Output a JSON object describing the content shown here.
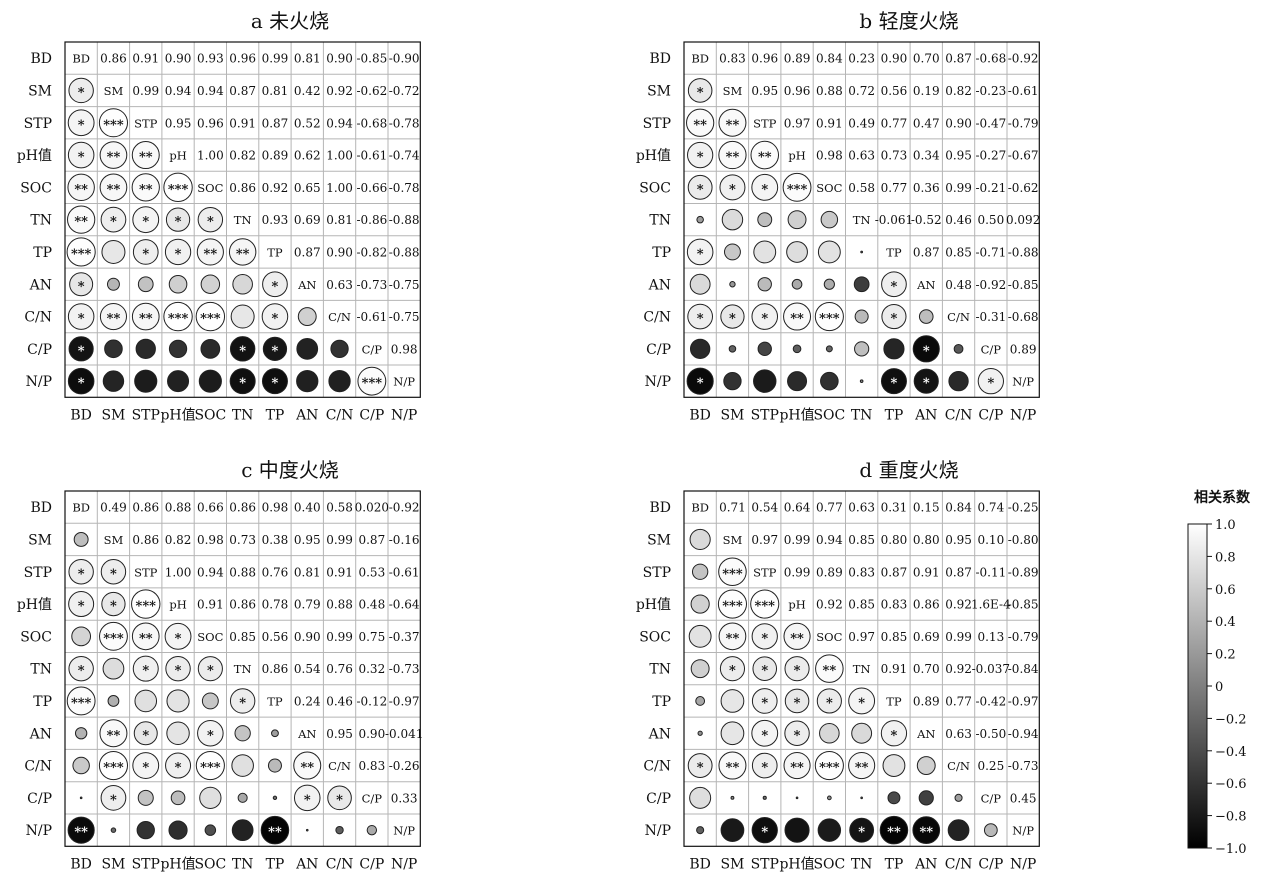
{
  "chart_data": [
    {
      "type": "heatmap",
      "subtype": "correlation-matrix",
      "title": "a 未火烧",
      "variables": [
        "BD",
        "SM",
        "STP",
        "pH值",
        "SOC",
        "TN",
        "TP",
        "AN",
        "C/N",
        "C/P",
        "N/P"
      ],
      "diagonal_labels": [
        "BD",
        "SM",
        "STP",
        "pH",
        "SOC",
        "TN",
        "TP",
        "AN",
        "C/N",
        "C/P",
        "N/P"
      ],
      "upper_display": [
        [
          null,
          "0.86",
          "0.91",
          "0.90",
          "0.93",
          "0.96",
          "0.99",
          "0.81",
          "0.90",
          "-0.85",
          "-0.90"
        ],
        [
          null,
          null,
          "0.99",
          "0.94",
          "0.94",
          "0.87",
          "0.81",
          "0.42",
          "0.92",
          "-0.62",
          "-0.72"
        ],
        [
          null,
          null,
          null,
          "0.95",
          "0.96",
          "0.91",
          "0.87",
          "0.52",
          "0.94",
          "-0.68",
          "-0.78"
        ],
        [
          null,
          null,
          null,
          null,
          "1.00",
          "0.82",
          "0.89",
          "0.62",
          "1.00",
          "-0.61",
          "-0.74"
        ],
        [
          null,
          null,
          null,
          null,
          null,
          "0.86",
          "0.92",
          "0.65",
          "1.00",
          "-0.66",
          "-0.78"
        ],
        [
          null,
          null,
          null,
          null,
          null,
          null,
          "0.93",
          "0.69",
          "0.81",
          "-0.86",
          "-0.88"
        ],
        [
          null,
          null,
          null,
          null,
          null,
          null,
          null,
          "0.87",
          "0.90",
          "-0.82",
          "-0.88"
        ],
        [
          null,
          null,
          null,
          null,
          null,
          null,
          null,
          null,
          "0.63",
          "-0.73",
          "-0.75"
        ],
        [
          null,
          null,
          null,
          null,
          null,
          null,
          null,
          null,
          null,
          "-0.61",
          "-0.75"
        ],
        [
          null,
          null,
          null,
          null,
          null,
          null,
          null,
          null,
          null,
          null,
          "0.98"
        ],
        [
          null,
          null,
          null,
          null,
          null,
          null,
          null,
          null,
          null,
          null,
          null
        ]
      ],
      "lower_stars": [
        [],
        [
          "*"
        ],
        [
          "*",
          "***"
        ],
        [
          "*",
          "**",
          "**"
        ],
        [
          "**",
          "**",
          "**",
          "***"
        ],
        [
          "**",
          "*",
          "*",
          "*",
          "*"
        ],
        [
          "***",
          "",
          "*",
          "*",
          "**",
          "**"
        ],
        [
          "*",
          "",
          "",
          "",
          "",
          "",
          "*"
        ],
        [
          "*",
          "**",
          "**",
          "***",
          "***",
          "",
          "*",
          ""
        ],
        [
          "*",
          "",
          "",
          "",
          "",
          "*",
          "*",
          "",
          ""
        ],
        [
          "*",
          "",
          "",
          "",
          "",
          "*",
          "*",
          "",
          "",
          "***"
        ]
      ]
    },
    {
      "type": "heatmap",
      "subtype": "correlation-matrix",
      "title": "b 轻度火烧",
      "variables": [
        "BD",
        "SM",
        "STP",
        "pH值",
        "SOC",
        "TN",
        "TP",
        "AN",
        "C/N",
        "C/P",
        "N/P"
      ],
      "diagonal_labels": [
        "BD",
        "SM",
        "STP",
        "pH",
        "SOC",
        "TN",
        "TP",
        "AN",
        "C/N",
        "C/P",
        "N/P"
      ],
      "upper_display": [
        [
          null,
          "0.83",
          "0.96",
          "0.89",
          "0.84",
          "0.23",
          "0.90",
          "0.70",
          "0.87",
          "-0.68",
          "-0.92"
        ],
        [
          null,
          null,
          "0.95",
          "0.96",
          "0.88",
          "0.72",
          "0.56",
          "0.19",
          "0.82",
          "-0.23",
          "-0.61"
        ],
        [
          null,
          null,
          null,
          "0.97",
          "0.91",
          "0.49",
          "0.77",
          "0.47",
          "0.90",
          "-0.47",
          "-0.79"
        ],
        [
          null,
          null,
          null,
          null,
          "0.98",
          "0.63",
          "0.73",
          "0.34",
          "0.95",
          "-0.27",
          "-0.67"
        ],
        [
          null,
          null,
          null,
          null,
          null,
          "0.58",
          "0.77",
          "0.36",
          "0.99",
          "-0.21",
          "-0.62"
        ],
        [
          null,
          null,
          null,
          null,
          null,
          null,
          "-0.061",
          "-0.52",
          "0.46",
          "0.50",
          "0.092"
        ],
        [
          null,
          null,
          null,
          null,
          null,
          null,
          null,
          "0.87",
          "0.85",
          "-0.71",
          "-0.88"
        ],
        [
          null,
          null,
          null,
          null,
          null,
          null,
          null,
          null,
          "0.48",
          "-0.92",
          "-0.85"
        ],
        [
          null,
          null,
          null,
          null,
          null,
          null,
          null,
          null,
          null,
          "-0.31",
          "-0.68"
        ],
        [
          null,
          null,
          null,
          null,
          null,
          null,
          null,
          null,
          null,
          null,
          "0.89"
        ],
        [
          null,
          null,
          null,
          null,
          null,
          null,
          null,
          null,
          null,
          null,
          null
        ]
      ],
      "lower_stars": [
        [],
        [
          "*"
        ],
        [
          "**",
          "**"
        ],
        [
          "*",
          "**",
          "**"
        ],
        [
          "*",
          "*",
          "*",
          "***"
        ],
        [
          "",
          "",
          "",
          "",
          ""
        ],
        [
          "*",
          "",
          "",
          "",
          "",
          ""
        ],
        [
          "",
          "",
          "",
          "",
          "",
          "",
          "*"
        ],
        [
          "*",
          "*",
          "*",
          "**",
          "***",
          "",
          "*",
          ""
        ],
        [
          "",
          "",
          "",
          "",
          "",
          "",
          "",
          "*",
          ""
        ],
        [
          "*",
          "",
          "",
          "",
          "",
          "",
          "*",
          "*",
          "",
          "*"
        ]
      ]
    },
    {
      "type": "heatmap",
      "subtype": "correlation-matrix",
      "title": "c 中度火烧",
      "variables": [
        "BD",
        "SM",
        "STP",
        "pH值",
        "SOC",
        "TN",
        "TP",
        "AN",
        "C/N",
        "C/P",
        "N/P"
      ],
      "diagonal_labels": [
        "BD",
        "SM",
        "STP",
        "pH",
        "SOC",
        "TN",
        "TP",
        "AN",
        "C/N",
        "C/P",
        "N/P"
      ],
      "upper_display": [
        [
          null,
          "0.49",
          "0.86",
          "0.88",
          "0.66",
          "0.86",
          "0.98",
          "0.40",
          "0.58",
          "0.020",
          "-0.92"
        ],
        [
          null,
          null,
          "0.86",
          "0.82",
          "0.98",
          "0.73",
          "0.38",
          "0.95",
          "0.99",
          "0.87",
          "-0.16"
        ],
        [
          null,
          null,
          null,
          "1.00",
          "0.94",
          "0.88",
          "0.76",
          "0.81",
          "0.91",
          "0.53",
          "-0.61"
        ],
        [
          null,
          null,
          null,
          null,
          "0.91",
          "0.86",
          "0.78",
          "0.79",
          "0.88",
          "0.48",
          "-0.64"
        ],
        [
          null,
          null,
          null,
          null,
          null,
          "0.85",
          "0.56",
          "0.90",
          "0.99",
          "0.75",
          "-0.37"
        ],
        [
          null,
          null,
          null,
          null,
          null,
          null,
          "0.86",
          "0.54",
          "0.76",
          "0.32",
          "-0.73"
        ],
        [
          null,
          null,
          null,
          null,
          null,
          null,
          null,
          "0.24",
          "0.46",
          "-0.12",
          "-0.97"
        ],
        [
          null,
          null,
          null,
          null,
          null,
          null,
          null,
          null,
          "0.95",
          "0.90",
          "-0.041"
        ],
        [
          null,
          null,
          null,
          null,
          null,
          null,
          null,
          null,
          null,
          "0.83",
          "-0.26"
        ],
        [
          null,
          null,
          null,
          null,
          null,
          null,
          null,
          null,
          null,
          null,
          "0.33"
        ],
        [
          null,
          null,
          null,
          null,
          null,
          null,
          null,
          null,
          null,
          null,
          null
        ]
      ],
      "lower_stars": [
        [],
        [
          ""
        ],
        [
          "*",
          "*"
        ],
        [
          "*",
          "*",
          "***"
        ],
        [
          "",
          "***",
          "**",
          "*"
        ],
        [
          "*",
          "",
          "*",
          "*",
          "*"
        ],
        [
          "***",
          "",
          "",
          "",
          "",
          "*"
        ],
        [
          "",
          "**",
          "*",
          "",
          "*",
          "",
          ""
        ],
        [
          "",
          "***",
          "*",
          "*",
          "***",
          "",
          "",
          "**"
        ],
        [
          "",
          "*",
          "",
          "",
          "",
          "",
          "",
          "*",
          "*"
        ],
        [
          "**",
          "",
          "",
          "",
          "",
          "",
          "**",
          "",
          "",
          ""
        ]
      ]
    },
    {
      "type": "heatmap",
      "subtype": "correlation-matrix",
      "title": "d 重度火烧",
      "variables": [
        "BD",
        "SM",
        "STP",
        "pH值",
        "SOC",
        "TN",
        "TP",
        "AN",
        "C/N",
        "C/P",
        "N/P"
      ],
      "diagonal_labels": [
        "BD",
        "SM",
        "STP",
        "pH",
        "SOC",
        "TN",
        "TP",
        "AN",
        "C/N",
        "C/P",
        "N/P"
      ],
      "upper_display": [
        [
          null,
          "0.71",
          "0.54",
          "0.64",
          "0.77",
          "0.63",
          "0.31",
          "0.15",
          "0.84",
          "0.74",
          "-0.25"
        ],
        [
          null,
          null,
          "0.97",
          "0.99",
          "0.94",
          "0.85",
          "0.80",
          "0.80",
          "0.95",
          "0.10",
          "-0.80"
        ],
        [
          null,
          null,
          null,
          "0.99",
          "0.89",
          "0.83",
          "0.87",
          "0.91",
          "0.87",
          "-0.11",
          "-0.89"
        ],
        [
          null,
          null,
          null,
          null,
          "0.92",
          "0.85",
          "0.83",
          "0.86",
          "0.92",
          "1.6E-4",
          "-0.85"
        ],
        [
          null,
          null,
          null,
          null,
          null,
          "0.97",
          "0.85",
          "0.69",
          "0.99",
          "0.13",
          "-0.79"
        ],
        [
          null,
          null,
          null,
          null,
          null,
          null,
          "0.91",
          "0.70",
          "0.92",
          "-0.037",
          "-0.84"
        ],
        [
          null,
          null,
          null,
          null,
          null,
          null,
          null,
          "0.89",
          "0.77",
          "-0.42",
          "-0.97"
        ],
        [
          null,
          null,
          null,
          null,
          null,
          null,
          null,
          null,
          "0.63",
          "-0.50",
          "-0.94"
        ],
        [
          null,
          null,
          null,
          null,
          null,
          null,
          null,
          null,
          null,
          "0.25",
          "-0.73"
        ],
        [
          null,
          null,
          null,
          null,
          null,
          null,
          null,
          null,
          null,
          null,
          "0.45"
        ],
        [
          null,
          null,
          null,
          null,
          null,
          null,
          null,
          null,
          null,
          null,
          null
        ]
      ],
      "lower_stars": [
        [],
        [
          ""
        ],
        [
          "",
          "***"
        ],
        [
          "",
          "***",
          "***"
        ],
        [
          "",
          "**",
          "*",
          "**"
        ],
        [
          "",
          "*",
          "*",
          "*",
          "**"
        ],
        [
          "",
          "",
          "*",
          "*",
          "*",
          "*"
        ],
        [
          "",
          "",
          "*",
          "*",
          "",
          "",
          "*"
        ],
        [
          "*",
          "**",
          "*",
          "**",
          "***",
          "**",
          "",
          ""
        ],
        [
          "",
          "",
          "",
          "",
          "",
          "",
          "",
          "",
          ""
        ],
        [
          "",
          "",
          "*",
          "",
          "",
          "*",
          "**",
          "**",
          "",
          ""
        ]
      ]
    }
  ],
  "colorbar": {
    "title": "相关系数",
    "range": [
      -1.0,
      1.0
    ],
    "tick_labels": [
      "1.0",
      "0.8",
      "0.6",
      "0.4",
      "0.2",
      "0",
      "−0.2",
      "−0.4",
      "−0.6",
      "−0.8",
      "−1.0"
    ],
    "colors": {
      "low": "#000000",
      "high": "#ffffff"
    }
  }
}
